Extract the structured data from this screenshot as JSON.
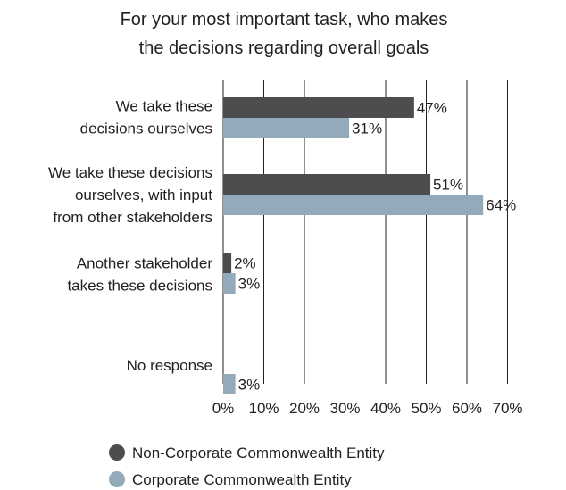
{
  "chart_data": {
    "type": "bar",
    "orientation": "horizontal",
    "title_lines": [
      "For your most important task, who makes",
      "the decisions regarding overall goals"
    ],
    "title": "For your most important task, who makes the decisions regarding overall goals",
    "xlabel": "",
    "ylabel": "",
    "xlim": [
      0,
      70
    ],
    "x_ticks": [
      0,
      10,
      20,
      30,
      40,
      50,
      60,
      70
    ],
    "x_tick_labels": [
      "0%",
      "10%",
      "20%",
      "30%",
      "40%",
      "50%",
      "60%",
      "70%"
    ],
    "grid": true,
    "legend_position": "bottom",
    "categories": [
      "We take these decisions ourselves",
      "We take these decisions ourselves, with input from other stakeholders",
      "Another stakeholder takes these decisions",
      "No response"
    ],
    "category_label_lines": [
      [
        "We take these",
        "decisions ourselves"
      ],
      [
        "We take these decisions",
        "ourselves, with input",
        "from other stakeholders"
      ],
      [
        "Another stakeholder",
        "takes these decisions"
      ],
      [
        "No response"
      ]
    ],
    "series": [
      {
        "name": "Non-Corporate Commonwealth Entity",
        "color": "#4d4d4f",
        "values": [
          47,
          51,
          2,
          null
        ],
        "labels": [
          "47%",
          "51%",
          "2%",
          ""
        ]
      },
      {
        "name": "Corporate Commonwealth Entity",
        "color": "#92aab9",
        "values": [
          31,
          64,
          3,
          3
        ],
        "labels": [
          "31%",
          "64%",
          "3%",
          "3%"
        ]
      }
    ]
  }
}
